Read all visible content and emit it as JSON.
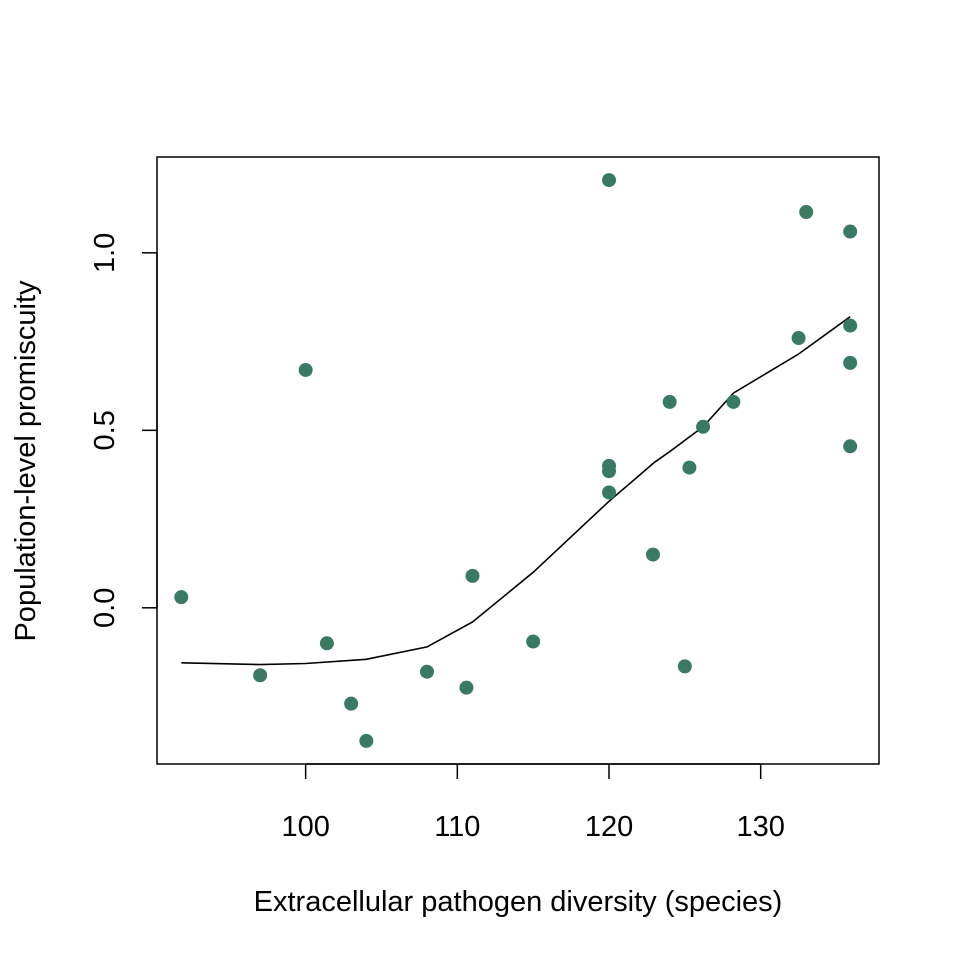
{
  "chart_data": {
    "type": "scatter",
    "title": "",
    "xlabel": "Extracellular pathogen diversity (species)",
    "ylabel": "Population-level promiscuity",
    "xlim": [
      90.2,
      137.8
    ],
    "ylim": [
      -0.44,
      1.27
    ],
    "x_ticks": [
      100,
      110,
      120,
      130
    ],
    "y_ticks": [
      0.0,
      0.5,
      1.0
    ],
    "x_tick_labels": [
      "100",
      "110",
      "120",
      "130"
    ],
    "y_tick_labels": [
      "0.0",
      "0.5",
      "1.0"
    ],
    "grid": false,
    "legend": "none",
    "point_color": "#3a7a62",
    "line_color": "#000000",
    "points": [
      {
        "x": 91.8,
        "y": 0.03
      },
      {
        "x": 97.0,
        "y": -0.19
      },
      {
        "x": 100.0,
        "y": 0.67
      },
      {
        "x": 101.4,
        "y": -0.1
      },
      {
        "x": 103.0,
        "y": -0.27
      },
      {
        "x": 104.0,
        "y": -0.375
      },
      {
        "x": 108.0,
        "y": -0.18
      },
      {
        "x": 110.6,
        "y": -0.225
      },
      {
        "x": 111.0,
        "y": 0.09
      },
      {
        "x": 115.0,
        "y": -0.095
      },
      {
        "x": 120.0,
        "y": 1.205
      },
      {
        "x": 120.0,
        "y": 0.4
      },
      {
        "x": 120.0,
        "y": 0.385
      },
      {
        "x": 120.0,
        "y": 0.325
      },
      {
        "x": 122.9,
        "y": 0.15
      },
      {
        "x": 124.0,
        "y": 0.58
      },
      {
        "x": 125.0,
        "y": -0.165
      },
      {
        "x": 125.3,
        "y": 0.395
      },
      {
        "x": 126.2,
        "y": 0.51
      },
      {
        "x": 128.2,
        "y": 0.58
      },
      {
        "x": 132.5,
        "y": 0.76
      },
      {
        "x": 133.0,
        "y": 1.115
      },
      {
        "x": 135.9,
        "y": 1.06
      },
      {
        "x": 135.9,
        "y": 0.795
      },
      {
        "x": 135.9,
        "y": 0.69
      },
      {
        "x": 135.9,
        "y": 0.455
      }
    ],
    "trend_line": [
      {
        "x": 91.8,
        "y": -0.155
      },
      {
        "x": 97.0,
        "y": -0.16
      },
      {
        "x": 100.0,
        "y": -0.157
      },
      {
        "x": 104.0,
        "y": -0.145
      },
      {
        "x": 108.0,
        "y": -0.11
      },
      {
        "x": 111.0,
        "y": -0.04
      },
      {
        "x": 115.0,
        "y": 0.1
      },
      {
        "x": 120.0,
        "y": 0.3
      },
      {
        "x": 123.0,
        "y": 0.41
      },
      {
        "x": 124.0,
        "y": 0.44
      },
      {
        "x": 126.2,
        "y": 0.51
      },
      {
        "x": 128.2,
        "y": 0.605
      },
      {
        "x": 132.5,
        "y": 0.715
      },
      {
        "x": 135.9,
        "y": 0.82
      }
    ]
  }
}
